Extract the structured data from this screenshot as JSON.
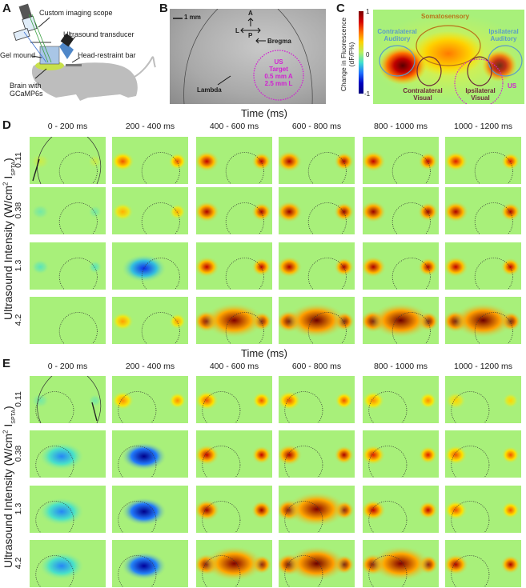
{
  "panel_letters": {
    "a": "A",
    "b": "B",
    "c": "C",
    "d": "D",
    "e": "E"
  },
  "panelA": {
    "labels": {
      "scope": "Custom imaging scope",
      "transducer": "Ultrasound transducer",
      "gel": "Gel mound",
      "bar": "Head-restraint bar",
      "brain1": "Brain with",
      "brain2": "GCaMP6s"
    }
  },
  "panelB": {
    "scale": "1 mm",
    "compass": {
      "a": "A",
      "l": "L",
      "p": "P"
    },
    "bregma": "Bregma",
    "lambda": "Lambda",
    "target": [
      "US",
      "Target",
      "0.5 mm A",
      "2.5 mm L"
    ]
  },
  "panelC": {
    "colorbar_title1": "Change in Fluorescence",
    "colorbar_title2": "(dF/F%)",
    "colorbar_ticks": [
      "1",
      "0",
      "-1"
    ],
    "regions": {
      "somatosensory": "Somatosensory",
      "contra_aud1": "Contralateral",
      "contra_aud2": "Auditory",
      "ipsi_aud1": "Ipsilateral",
      "ipsi_aud2": "Auditory",
      "contra_vis1": "Contralateral",
      "contra_vis2": "Visual",
      "ipsi_vis1": "Ipsilateral",
      "ipsi_vis2": "Visual",
      "us": "US"
    },
    "colors": {
      "auditory": "#5b9bc8",
      "visual": "#6b2a3a",
      "somato": "#b8731a",
      "us": "#d21fd2"
    }
  },
  "grid": {
    "time_title": "Time (ms)",
    "y_title": "Ultrasound Intensity (W/cm",
    "y_sup": "2",
    "y_sub": "SPTA",
    "columns": [
      "0 - 200 ms",
      "200 - 400 ms",
      "400 - 600 ms",
      "600 - 800 ms",
      "800 - 1000 ms",
      "1000 - 1200 ms"
    ],
    "rows": [
      "0.11",
      "0.38",
      "1.3",
      "4.2"
    ]
  },
  "chart_data": [
    {
      "type": "heatmap",
      "title": "D",
      "xlabel": "Time (ms)",
      "ylabel": "Ultrasound Intensity (W/cm2 ISPTA)",
      "colorbar_label": "Change in Fluorescence (dF/F%)",
      "colorbar_range": [
        -1,
        1
      ],
      "x_categories": [
        "0 - 200 ms",
        "200 - 400 ms",
        "400 - 600 ms",
        "600 - 800 ms",
        "800 - 1000 ms",
        "1000 - 1200 ms"
      ],
      "y_categories": [
        "0.11",
        "0.38",
        "1.3",
        "4.2"
      ],
      "us_target_side": "right",
      "approx_peak_dFF": [
        [
          0.1,
          0.6,
          0.8,
          0.85,
          0.8,
          0.7
        ],
        [
          -0.1,
          0.4,
          0.85,
          0.9,
          0.9,
          0.85
        ],
        [
          -0.15,
          -0.6,
          0.8,
          0.85,
          0.85,
          0.8
        ],
        [
          0.0,
          0.45,
          0.95,
          1.0,
          1.0,
          1.0
        ]
      ]
    },
    {
      "type": "heatmap",
      "title": "E",
      "xlabel": "Time (ms)",
      "ylabel": "Ultrasound Intensity (W/cm2 ISPTA)",
      "colorbar_label": "Change in Fluorescence (dF/F%)",
      "colorbar_range": [
        -1,
        1
      ],
      "x_categories": [
        "0 - 200 ms",
        "200 - 400 ms",
        "400 - 600 ms",
        "600 - 800 ms",
        "800 - 1000 ms",
        "1000 - 1200 ms"
      ],
      "y_categories": [
        "0.11",
        "0.38",
        "1.3",
        "4.2"
      ],
      "us_target_side": "left",
      "approx_peak_dFF": [
        [
          -0.1,
          0.5,
          0.6,
          0.6,
          0.5,
          0.3
        ],
        [
          -0.4,
          -0.95,
          0.8,
          0.85,
          0.7,
          0.6
        ],
        [
          -0.4,
          -0.95,
          0.9,
          0.95,
          0.8,
          0.6
        ],
        [
          -0.4,
          -0.9,
          0.95,
          1.0,
          0.95,
          0.85
        ]
      ]
    }
  ]
}
